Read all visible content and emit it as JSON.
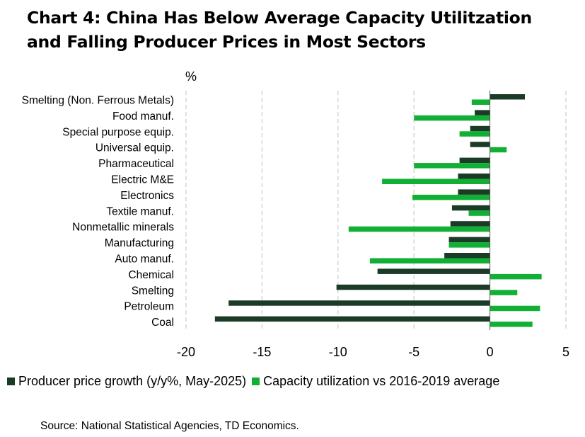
{
  "title_lines": [
    "Chart 4: China Has Below Average Capacity Utilitzation",
    "and Falling Producer Prices in Most Sectors"
  ],
  "source": "Source: National Statistical Agencies, TD Economics.",
  "colors": {
    "series_ppi": "#1c3b27",
    "series_cap": "#11b035",
    "grid": "#cfcfcf",
    "axis": "#555555"
  },
  "chart_data": {
    "type": "bar",
    "orientation": "horizontal",
    "title": "Chart 4: China Has Below Average Capacity Utilitzation and Falling Producer Prices in Most Sectors",
    "unit_label": "%",
    "xlabel": "",
    "ylabel": "%",
    "xlim": [
      -20,
      5
    ],
    "x_ticks": [
      "-20",
      "-15",
      "-10",
      "-5",
      "0",
      "5"
    ],
    "x_tick_values": [
      -20,
      -15,
      -10,
      -5,
      0,
      5
    ],
    "grid": true,
    "legend_position": "bottom",
    "categories": [
      "Smelting (Non. Ferrous Metals)",
      "Food manuf.",
      "Special purpose equip.",
      "Universal equip.",
      "Pharmaceutical",
      "Electric M&E",
      "Electronics",
      "Textile manuf.",
      "Nonmetallic minerals",
      "Manufacturing",
      "Auto manuf.",
      "Chemical",
      "Smelting",
      "Petroleum",
      "Coal"
    ],
    "series": [
      {
        "name": "Producer price growth (y/y%, May-2025)",
        "values": [
          2.3,
          -1.0,
          -1.3,
          -1.3,
          -2.0,
          -2.1,
          -2.1,
          -2.5,
          -2.6,
          -2.7,
          -3.0,
          -7.4,
          -10.1,
          -17.2,
          -18.1
        ]
      },
      {
        "name": "Capacity utilization vs 2016-2019 average",
        "values": [
          -1.2,
          -5.0,
          -2.0,
          1.1,
          -5.0,
          -7.1,
          -5.1,
          -1.4,
          -9.3,
          -2.7,
          -7.9,
          3.4,
          1.8,
          3.3,
          2.8
        ]
      }
    ]
  }
}
